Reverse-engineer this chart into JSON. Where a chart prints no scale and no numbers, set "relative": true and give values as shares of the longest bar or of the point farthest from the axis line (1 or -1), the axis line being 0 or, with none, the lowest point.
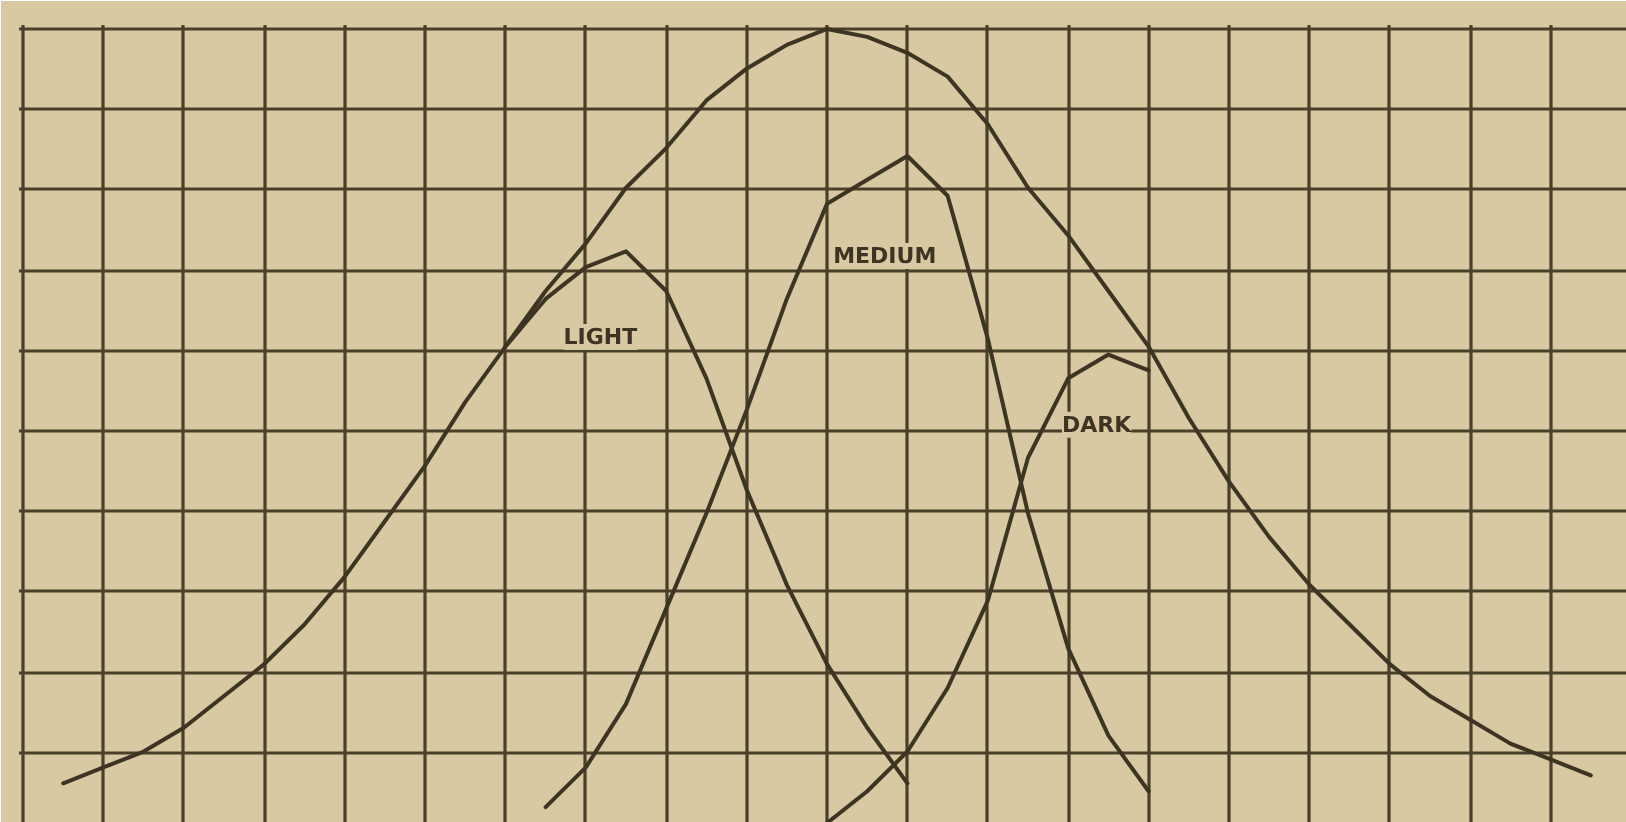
{
  "chart_data": {
    "type": "line",
    "relative": true,
    "grid": true,
    "categories": [
      null,
      null,
      null,
      null,
      null,
      null,
      null,
      null,
      null,
      null,
      null,
      null,
      null,
      null,
      null,
      null,
      null,
      null,
      null,
      null,
      null,
      null,
      null,
      null,
      null,
      null,
      null,
      null,
      null,
      null,
      null,
      null,
      null,
      null,
      null,
      null,
      null,
      null,
      null,
      null
    ],
    "series": [
      {
        "color": "#3d3423",
        "values": [
          null,
          0.05,
          0.07,
          0.09,
          0.12,
          0.16,
          0.2,
          0.25,
          0.31,
          0.38,
          0.45,
          0.53,
          0.6,
          0.67,
          0.73,
          0.8,
          0.85,
          0.91,
          0.95,
          0.98,
          1,
          0.99,
          0.97,
          0.94,
          0.88,
          0.8,
          0.74,
          0.67,
          0.6,
          0.51,
          0.43,
          0.36,
          0.3,
          0.25,
          0.2,
          0.16,
          0.13,
          0.1,
          0.08,
          0.06
        ]
      },
      {
        "name": "LIGHT",
        "color": "#3d3423",
        "values": [
          null,
          null,
          null,
          null,
          null,
          null,
          null,
          null,
          null,
          null,
          null,
          null,
          0.6,
          0.66,
          0.7,
          0.72,
          0.67,
          0.56,
          0.42,
          0.3,
          0.2,
          0.12,
          0.05,
          null,
          null,
          null,
          null,
          null,
          null,
          null,
          null,
          null,
          null,
          null,
          null,
          null,
          null,
          null,
          null,
          null
        ]
      },
      {
        "name": "MEDIUM",
        "color": "#3d3423",
        "values": [
          null,
          null,
          null,
          null,
          null,
          null,
          null,
          null,
          null,
          null,
          null,
          null,
          null,
          0.02,
          0.07,
          0.15,
          0.27,
          0.39,
          0.52,
          0.66,
          0.78,
          0.81,
          0.84,
          0.79,
          0.61,
          0.39,
          0.22,
          0.11,
          0.04,
          null,
          null,
          null,
          null,
          null,
          null,
          null,
          null,
          null,
          null,
          null
        ]
      },
      {
        "name": "DARK",
        "color": "#3d3423",
        "values": [
          null,
          null,
          null,
          null,
          null,
          null,
          null,
          null,
          null,
          null,
          null,
          null,
          null,
          null,
          null,
          null,
          null,
          null,
          null,
          null,
          0,
          0.04,
          0.09,
          0.17,
          0.28,
          0.46,
          0.56,
          0.59,
          0.57,
          null,
          null,
          null,
          null,
          null,
          null,
          null,
          null,
          null,
          null,
          null
        ]
      }
    ]
  }
}
